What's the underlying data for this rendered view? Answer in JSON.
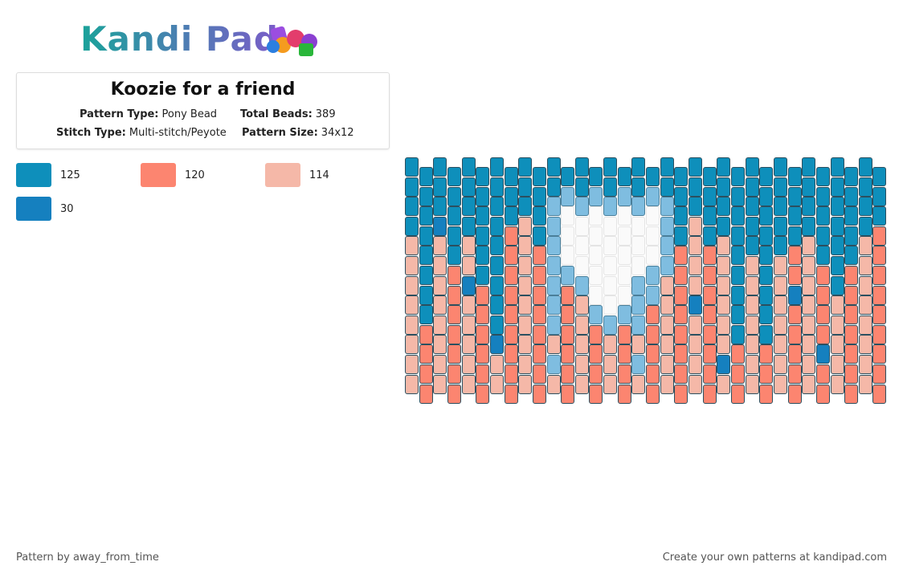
{
  "header": {
    "logo": "Kandi Pad"
  },
  "pattern": {
    "title": "Koozie for a friend",
    "fields": [
      {
        "label": "Pattern Type:",
        "value": "Pony Bead"
      },
      {
        "label": "Total Beads:",
        "value": "389"
      },
      {
        "label": "Stitch Type:",
        "value": "Multi-stitch/Peyote"
      },
      {
        "label": "Pattern Size:",
        "value": "34x12"
      }
    ]
  },
  "legend": [
    {
      "color": "#0e8fbb",
      "count": 125
    },
    {
      "color": "#fc8570",
      "count": 120
    },
    {
      "color": "#f5b8a8",
      "count": 114
    },
    {
      "color": "#1580bf",
      "count": 30
    }
  ],
  "footer": {
    "left": "Pattern by away_from_time",
    "right": "Create your own patterns at kandipad.com"
  }
}
